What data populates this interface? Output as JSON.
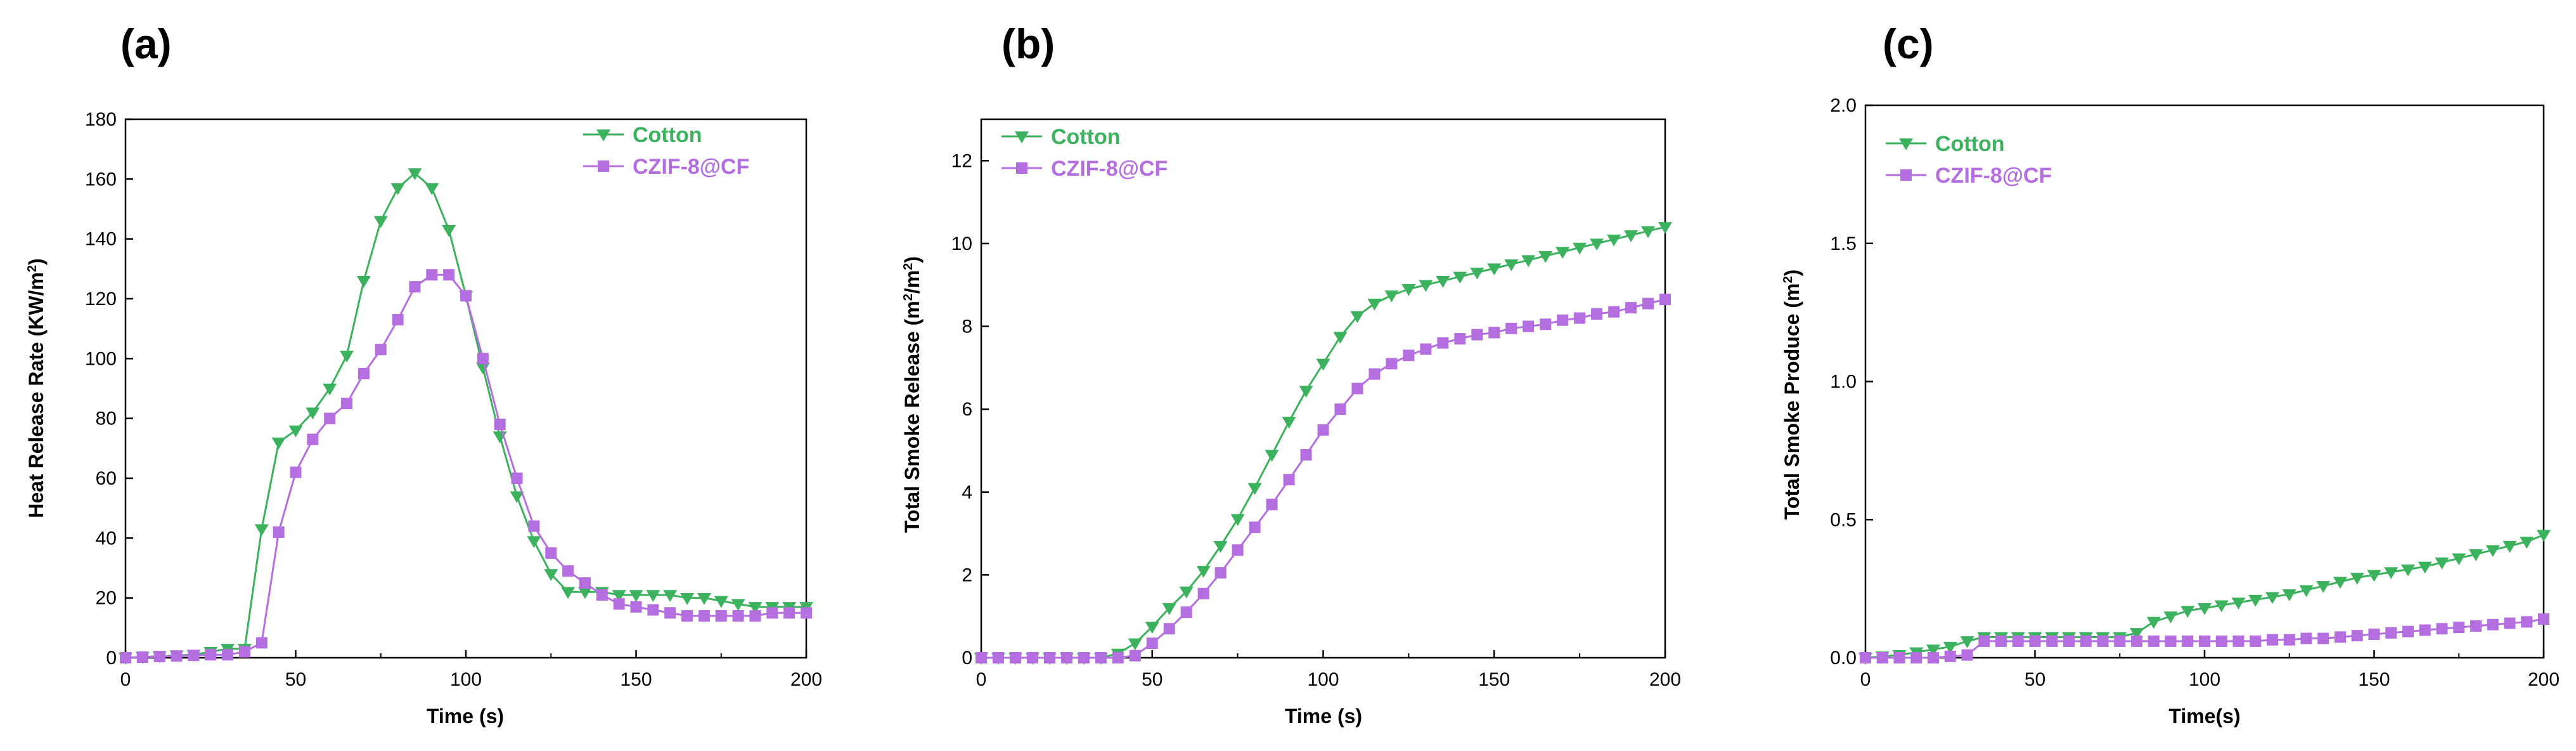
{
  "colors": {
    "cotton": "#3cb15e",
    "czif": "#b46ee0",
    "axis": "#000000"
  },
  "chart_data": [
    {
      "type": "line",
      "panel_label": "(a)",
      "xlabel": "Time (s)",
      "ylabel_pre": "Heat Release Rate (KW/m",
      "ylabel_sup": "2",
      "ylabel_post": ")",
      "xlim": [
        0,
        200
      ],
      "ylim": [
        0,
        180
      ],
      "xticks": [
        0,
        50,
        100,
        150,
        200
      ],
      "yticks": [
        0,
        20,
        40,
        60,
        80,
        100,
        120,
        140,
        160,
        180
      ],
      "xtick_labels": [
        "0",
        "50",
        "100",
        "150",
        "200"
      ],
      "ytick_labels": [
        "0",
        "20",
        "40",
        "60",
        "80",
        "100",
        "120",
        "140",
        "160",
        "180"
      ],
      "legend_position": "top-right",
      "series": [
        {
          "name": "Cotton",
          "marker": "triangle-down",
          "color_key": "cotton",
          "x": [
            0,
            5,
            10,
            15,
            20,
            25,
            30,
            35,
            40,
            45,
            50,
            55,
            60,
            65,
            70,
            75,
            80,
            85,
            90,
            95,
            100,
            105,
            110,
            115,
            120,
            125,
            130,
            135,
            140,
            145,
            150,
            155,
            160,
            165,
            170,
            175,
            180,
            185,
            190,
            195,
            200
          ],
          "y": [
            0,
            0.3,
            0.5,
            0.8,
            1,
            2,
            3,
            3,
            43,
            72,
            76,
            82,
            90,
            101,
            126,
            146,
            157,
            162,
            157,
            143,
            121,
            97,
            74,
            54,
            39,
            28,
            22,
            22,
            22,
            21,
            21,
            21,
            21,
            20,
            20,
            19,
            18,
            17,
            17,
            17,
            17
          ]
        },
        {
          "name": "CZIF-8@CF",
          "marker": "square",
          "color_key": "czif",
          "x": [
            0,
            5,
            10,
            15,
            20,
            25,
            30,
            35,
            40,
            45,
            50,
            55,
            60,
            65,
            70,
            75,
            80,
            85,
            90,
            95,
            100,
            105,
            110,
            115,
            120,
            125,
            130,
            135,
            140,
            145,
            150,
            155,
            160,
            165,
            170,
            175,
            180,
            185,
            190,
            195,
            200
          ],
          "y": [
            0,
            0.2,
            0.4,
            0.6,
            0.8,
            1,
            1,
            2,
            5,
            42,
            62,
            73,
            80,
            85,
            95,
            103,
            113,
            124,
            128,
            128,
            121,
            100,
            78,
            60,
            44,
            35,
            29,
            25,
            21,
            18,
            17,
            16,
            15,
            14,
            14,
            14,
            14,
            14,
            15,
            15,
            15
          ]
        }
      ]
    },
    {
      "type": "line",
      "panel_label": "(b)",
      "xlabel": "Time (s)",
      "ylabel_pre": "Total Smoke Release (m",
      "ylabel_sup": "2",
      "ylabel_mid": "/m",
      "ylabel_sup2": "2",
      "ylabel_post": ")",
      "xlim": [
        0,
        200
      ],
      "ylim": [
        0,
        13
      ],
      "xticks": [
        0,
        50,
        100,
        150,
        200
      ],
      "yticks": [
        0,
        2,
        4,
        6,
        8,
        10,
        12
      ],
      "xtick_labels": [
        "0",
        "50",
        "100",
        "150",
        "200"
      ],
      "ytick_labels": [
        "0",
        "2",
        "4",
        "6",
        "8",
        "10",
        "12"
      ],
      "legend_position": "top-left",
      "series": [
        {
          "name": "Cotton",
          "marker": "triangle-down",
          "color_key": "cotton",
          "x": [
            0,
            5,
            10,
            15,
            20,
            25,
            30,
            35,
            40,
            45,
            50,
            55,
            60,
            65,
            70,
            75,
            80,
            85,
            90,
            95,
            100,
            105,
            110,
            115,
            120,
            125,
            130,
            135,
            140,
            145,
            150,
            155,
            160,
            165,
            170,
            175,
            180,
            185,
            190,
            195,
            200
          ],
          "y": [
            0,
            0,
            0,
            0,
            0,
            0,
            0,
            0,
            0.1,
            0.35,
            0.75,
            1.2,
            1.6,
            2.1,
            2.7,
            3.35,
            4.1,
            4.9,
            5.7,
            6.45,
            7.1,
            7.75,
            8.25,
            8.55,
            8.75,
            8.9,
            9.0,
            9.1,
            9.2,
            9.3,
            9.4,
            9.5,
            9.6,
            9.7,
            9.8,
            9.9,
            10.0,
            10.1,
            10.2,
            10.3,
            10.4
          ]
        },
        {
          "name": "CZIF-8@CF",
          "marker": "square",
          "color_key": "czif",
          "x": [
            0,
            5,
            10,
            15,
            20,
            25,
            30,
            35,
            40,
            45,
            50,
            55,
            60,
            65,
            70,
            75,
            80,
            85,
            90,
            95,
            100,
            105,
            110,
            115,
            120,
            125,
            130,
            135,
            140,
            145,
            150,
            155,
            160,
            165,
            170,
            175,
            180,
            185,
            190,
            195,
            200
          ],
          "y": [
            0,
            0,
            0,
            0,
            0,
            0,
            0,
            0,
            0,
            0.05,
            0.35,
            0.7,
            1.1,
            1.55,
            2.05,
            2.6,
            3.15,
            3.7,
            4.3,
            4.9,
            5.5,
            6.0,
            6.5,
            6.85,
            7.1,
            7.3,
            7.45,
            7.6,
            7.7,
            7.8,
            7.85,
            7.95,
            8.0,
            8.05,
            8.15,
            8.2,
            8.3,
            8.35,
            8.45,
            8.55,
            8.65
          ]
        }
      ]
    },
    {
      "type": "line",
      "panel_label": "(c)",
      "xlabel": "Time(s)",
      "ylabel_pre": "Total Smoke Produce (m",
      "ylabel_sup": "2",
      "ylabel_post": ")",
      "xlim": [
        0,
        200
      ],
      "ylim": [
        0,
        2.0
      ],
      "xticks": [
        0,
        50,
        100,
        150,
        200
      ],
      "yticks": [
        0,
        0.5,
        1.0,
        1.5,
        2.0
      ],
      "xtick_labels": [
        "0",
        "50",
        "100",
        "150",
        "200"
      ],
      "ytick_labels": [
        "0.0",
        "0.5",
        "1.0",
        "1.5",
        "2.0"
      ],
      "legend_position": "top-left",
      "series": [
        {
          "name": "Cotton",
          "marker": "triangle-down",
          "color_key": "cotton",
          "x": [
            0,
            5,
            10,
            15,
            20,
            25,
            30,
            35,
            40,
            45,
            50,
            55,
            60,
            65,
            70,
            75,
            80,
            85,
            90,
            95,
            100,
            105,
            110,
            115,
            120,
            125,
            130,
            135,
            140,
            145,
            150,
            155,
            160,
            165,
            170,
            175,
            180,
            185,
            190,
            195,
            200
          ],
          "y": [
            0,
            0.005,
            0.01,
            0.02,
            0.03,
            0.04,
            0.06,
            0.075,
            0.075,
            0.075,
            0.075,
            0.075,
            0.075,
            0.075,
            0.075,
            0.075,
            0.09,
            0.13,
            0.15,
            0.17,
            0.18,
            0.19,
            0.2,
            0.21,
            0.22,
            0.23,
            0.245,
            0.26,
            0.275,
            0.29,
            0.3,
            0.31,
            0.32,
            0.33,
            0.345,
            0.36,
            0.375,
            0.39,
            0.405,
            0.42,
            0.445
          ]
        },
        {
          "name": "CZIF-8@CF",
          "marker": "square",
          "color_key": "czif",
          "x": [
            0,
            5,
            10,
            15,
            20,
            25,
            30,
            35,
            40,
            45,
            50,
            55,
            60,
            65,
            70,
            75,
            80,
            85,
            90,
            95,
            100,
            105,
            110,
            115,
            120,
            125,
            130,
            135,
            140,
            145,
            150,
            155,
            160,
            165,
            170,
            175,
            180,
            185,
            190,
            195,
            200
          ],
          "y": [
            0,
            0,
            0,
            0,
            0,
            0.005,
            0.01,
            0.06,
            0.06,
            0.06,
            0.06,
            0.06,
            0.06,
            0.06,
            0.06,
            0.06,
            0.06,
            0.06,
            0.06,
            0.06,
            0.06,
            0.06,
            0.06,
            0.06,
            0.065,
            0.065,
            0.07,
            0.07,
            0.075,
            0.08,
            0.085,
            0.09,
            0.095,
            0.1,
            0.105,
            0.11,
            0.115,
            0.12,
            0.125,
            0.13,
            0.14
          ]
        }
      ]
    }
  ]
}
